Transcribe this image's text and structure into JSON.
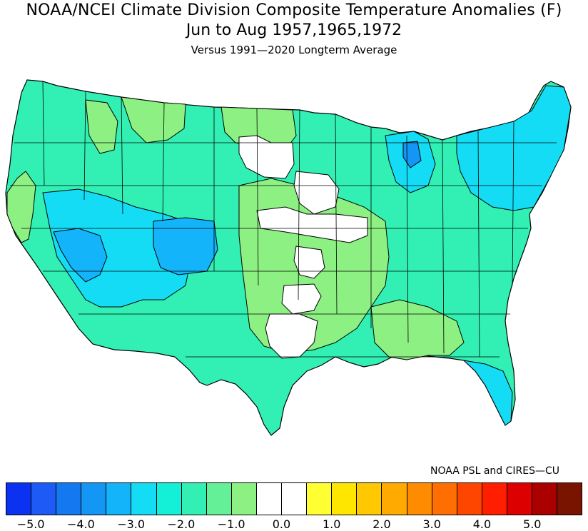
{
  "title": {
    "line1": "NOAA/NCEI Climate Division Composite Temperature Anomalies (F)",
    "line2": "Jun to Aug  1957,1965,1972",
    "line3": "Versus 1991—2020 Longterm Average"
  },
  "credit": "NOAA PSL and CIRES—CU",
  "colors": {
    "neg_5_0": "#0a32f0",
    "neg_4_5": "#1e5af5",
    "neg_4_0": "#1478f0",
    "neg_3_5": "#1496f5",
    "neg_3_0": "#14b4fa",
    "neg_2_5": "#14dcf5",
    "neg_2_0": "#14f0d7",
    "neg_1_5": "#32f0b4",
    "neg_1_0": "#64f096",
    "neg_0_5": "#8cf082",
    "zero_a": "#ffffff",
    "zero_b": "#ffffff",
    "pos_0_5": "#ffff32",
    "pos_1_0": "#ffe600",
    "pos_1_5": "#ffc800",
    "pos_2_0": "#ffaa00",
    "pos_2_5": "#ff8c00",
    "pos_3_0": "#ff6e00",
    "pos_3_5": "#ff4600",
    "pos_4_0": "#ff1e00",
    "pos_4_5": "#dc0000",
    "pos_5_0": "#aa0000",
    "pos_5_5": "#781400",
    "border": "#000000"
  },
  "legend": {
    "swatches": [
      "#0a32f0",
      "#1e5af5",
      "#1478f0",
      "#1496f5",
      "#14b4fa",
      "#14dcf5",
      "#14f0d7",
      "#32f0b4",
      "#64f096",
      "#8cf082",
      "#ffffff",
      "#ffffff",
      "#ffff32",
      "#ffe600",
      "#ffc800",
      "#ffaa00",
      "#ff8c00",
      "#ff6e00",
      "#ff4600",
      "#ff1e00",
      "#dc0000",
      "#aa0000",
      "#781400"
    ],
    "tick_labels": [
      "−5.0",
      "−4.0",
      "−3.0",
      "−2.0",
      "−1.0",
      "0.0",
      "1.0",
      "2.0",
      "3.0",
      "4.0",
      "5.0"
    ]
  }
}
